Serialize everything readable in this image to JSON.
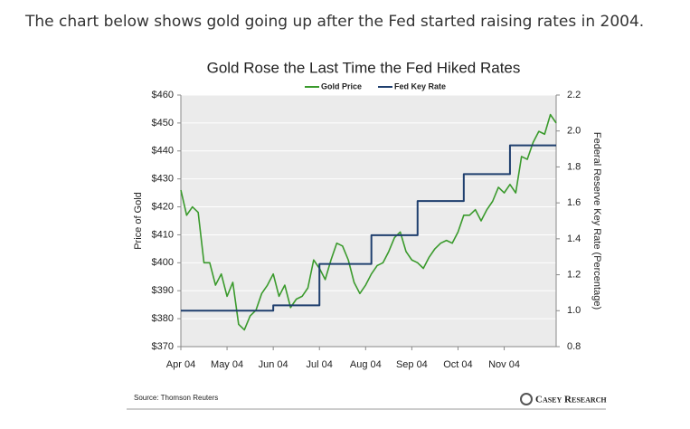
{
  "page": {
    "intro": "The chart below shows gold going up after the Fed started raising rates in 2004."
  },
  "chart_data": {
    "type": "line",
    "title": "Gold Rose the Last Time the Fed Hiked Rates",
    "y_label": "Price of Gold",
    "y2_label": "Federal Reserve Key Rate (Percentage)",
    "source": "Source: Thomson Reuters",
    "logo": "Casey Research",
    "categories": [
      "Apr 04",
      null,
      null,
      null,
      null,
      null,
      null,
      null,
      "May 04",
      null,
      null,
      null,
      null,
      null,
      null,
      null,
      "Jun 04",
      null,
      null,
      null,
      null,
      null,
      null,
      null,
      "Jul 04",
      null,
      null,
      null,
      null,
      null,
      null,
      null,
      "Aug 04",
      null,
      null,
      null,
      null,
      null,
      null,
      null,
      "Sep 04",
      null,
      null,
      null,
      null,
      null,
      null,
      null,
      "Oct 04",
      null,
      null,
      null,
      null,
      null,
      null,
      null,
      "Nov 04",
      null,
      null,
      null,
      null,
      null,
      null,
      null,
      null,
      null
    ],
    "series": [
      {
        "name": "Gold Price",
        "color": "#3a9a2c",
        "axis": "y",
        "values": [
          426,
          417,
          420,
          418,
          400,
          400,
          392,
          396,
          388,
          393,
          378,
          376,
          381,
          383,
          389,
          392,
          396,
          388,
          392,
          384,
          387,
          388,
          391,
          401,
          398,
          394,
          401,
          407,
          406,
          401,
          393,
          389,
          392,
          396,
          399,
          400,
          404,
          409,
          411,
          404,
          401,
          400,
          398,
          402,
          405,
          407,
          408,
          407,
          411,
          417,
          417,
          419,
          415,
          419,
          422,
          427,
          425,
          428,
          425,
          438,
          437,
          443,
          447,
          446,
          453,
          450
        ]
      },
      {
        "name": "Fed Key Rate",
        "color": "#1f3f6e",
        "axis": "y2",
        "step": true,
        "values": [
          1.0,
          1.0,
          1.0,
          1.0,
          1.0,
          1.0,
          1.0,
          1.0,
          1.0,
          1.0,
          1.0,
          1.0,
          1.0,
          1.0,
          1.0,
          1.0,
          1.03,
          1.03,
          1.03,
          1.03,
          1.03,
          1.03,
          1.03,
          1.03,
          1.26,
          1.26,
          1.26,
          1.26,
          1.26,
          1.26,
          1.26,
          1.26,
          1.26,
          1.42,
          1.42,
          1.42,
          1.42,
          1.42,
          1.42,
          1.42,
          1.42,
          1.61,
          1.61,
          1.61,
          1.61,
          1.61,
          1.61,
          1.61,
          1.61,
          1.76,
          1.76,
          1.76,
          1.76,
          1.76,
          1.76,
          1.76,
          1.76,
          1.92,
          1.92,
          1.92,
          1.92,
          1.92,
          1.92,
          1.92,
          1.92,
          1.92
        ]
      }
    ],
    "ylim": [
      370,
      460
    ],
    "yticks": [
      {
        "value": 370,
        "label": "$370"
      },
      {
        "value": 380,
        "label": "$380"
      },
      {
        "value": 390,
        "label": "$390"
      },
      {
        "value": 400,
        "label": "$400"
      },
      {
        "value": 410,
        "label": "$410"
      },
      {
        "value": 420,
        "label": "$420"
      },
      {
        "value": 430,
        "label": "$430"
      },
      {
        "value": 440,
        "label": "$440"
      },
      {
        "value": 450,
        "label": "$450"
      },
      {
        "value": 460,
        "label": "$460"
      }
    ],
    "y2lim": [
      0.8,
      2.2
    ],
    "y2ticks": [
      0.8,
      {
        "value": 1.0,
        "label": "1.0"
      },
      1.2,
      1.4,
      1.6,
      1.8,
      {
        "value": 2.0,
        "label": "2.0"
      },
      2.2
    ],
    "grid": true,
    "legend": "top"
  }
}
